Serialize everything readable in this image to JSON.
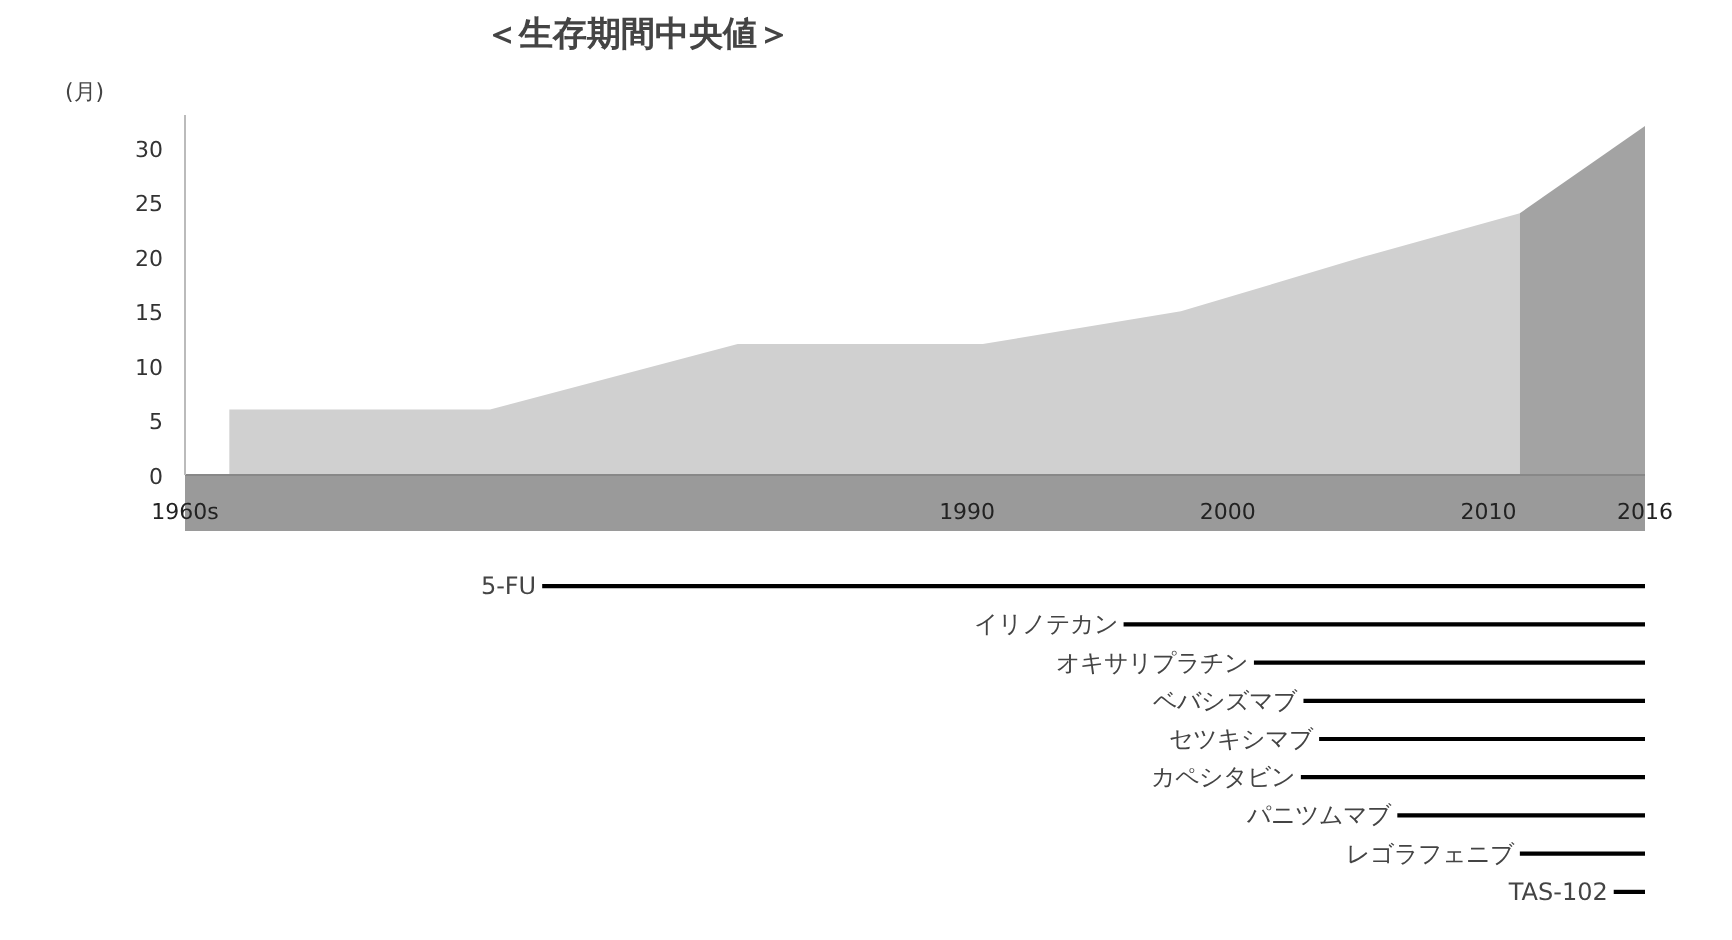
{
  "chart_data": [
    {
      "type": "area",
      "title": "＜生存期間中央値＞",
      "ylabel": "(月)",
      "series": [
        {
          "color": "#d0d0d0",
          "x": [
            1961.7,
            1971.7,
            1981.2,
            1990.6,
            1998.2,
            2005.2,
            2011.2
          ],
          "values": [
            6,
            6,
            12,
            12,
            15,
            20,
            24
          ]
        },
        {
          "color": "#a3a3a3",
          "x": [
            2011.2,
            2016
          ],
          "values": [
            24,
            32
          ]
        }
      ],
      "xlim": [
        1960,
        2016
      ],
      "xticks": [
        {
          "value": 1960,
          "label": "1960s"
        },
        1990,
        2000,
        2010,
        2016
      ],
      "ylim": [
        0,
        33
      ],
      "yticks": [
        0,
        5,
        10,
        15,
        20,
        25,
        30
      ],
      "grid": false
    },
    {
      "type": "bar",
      "orientation": "horizontal",
      "color": "#000000",
      "categories": [
        "5-FU",
        "イリノテカン",
        "オキサリプラチン",
        "ベバシズマブ",
        "セツキシマブ",
        "カペシタビン",
        "パニツムマブ",
        "レゴラフェニブ",
        "TAS-102"
      ],
      "base": [
        1973.7,
        1996,
        2001,
        2002.9,
        2003.5,
        2002.8,
        2006.5,
        2011.2,
        2014.8
      ],
      "values": [
        42.3,
        20,
        15,
        13.1,
        12.5,
        13.2,
        9.5,
        4.8,
        1.2
      ],
      "xlim": [
        1960,
        2016
      ],
      "tick_labels": false
    }
  ]
}
